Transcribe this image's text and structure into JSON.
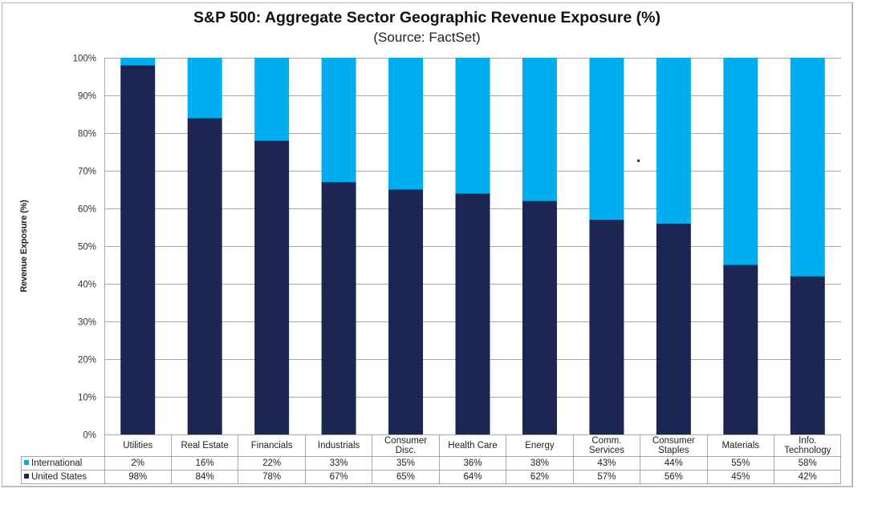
{
  "chart_data": {
    "type": "bar",
    "stacked": true,
    "title": "S&P 500: Aggregate Sector Geographic Revenue Exposure (%)",
    "subtitle": "(Source: FactSet)",
    "xlabel": "",
    "ylabel": "Revenue Exposure (%)",
    "ylim": [
      0,
      100
    ],
    "yticks": [
      "0%",
      "10%",
      "20%",
      "30%",
      "40%",
      "50%",
      "60%",
      "70%",
      "80%",
      "90%",
      "100%"
    ],
    "grid": true,
    "legend": "data-table-bottom",
    "categories": [
      "Utilities",
      "Real Estate",
      "Financials",
      "Industrials",
      "Consumer Disc.",
      "Health Care",
      "Energy",
      "Comm. Services",
      "Consumer Staples",
      "Materials",
      "Info. Technology"
    ],
    "category_lines": [
      [
        "Utilities"
      ],
      [
        "Real Estate"
      ],
      [
        "Financials"
      ],
      [
        "Industrials"
      ],
      [
        "Consumer",
        "Disc."
      ],
      [
        "Health Care"
      ],
      [
        "Energy"
      ],
      [
        "Comm.",
        "Services"
      ],
      [
        "Consumer",
        "Staples"
      ],
      [
        "Materials"
      ],
      [
        "Info.",
        "Technology"
      ]
    ],
    "series": [
      {
        "name": "United States",
        "color": "#1b2752",
        "values": [
          98,
          84,
          78,
          67,
          65,
          64,
          62,
          57,
          56,
          45,
          42
        ],
        "labels": [
          "98%",
          "84%",
          "78%",
          "67%",
          "65%",
          "64%",
          "62%",
          "57%",
          "56%",
          "45%",
          "42%"
        ]
      },
      {
        "name": "International",
        "color": "#00aeef",
        "values": [
          2,
          16,
          22,
          33,
          35,
          36,
          38,
          43,
          44,
          55,
          58
        ],
        "labels": [
          "2%",
          "16%",
          "22%",
          "33%",
          "35%",
          "36%",
          "38%",
          "43%",
          "44%",
          "55%",
          "58%"
        ]
      }
    ]
  }
}
